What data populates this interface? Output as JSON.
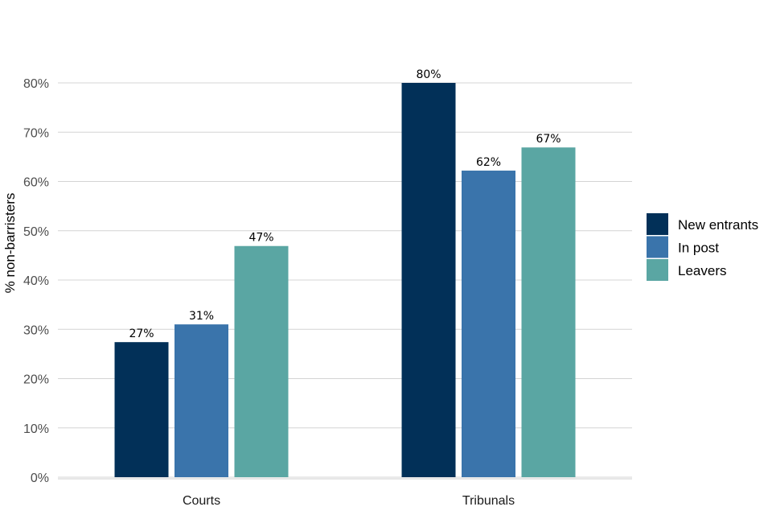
{
  "chart_data": {
    "type": "bar",
    "ylabel": "% non-barristers",
    "xlabel": "",
    "ylim": [
      0,
      80
    ],
    "yticks": [
      "0%",
      "10%",
      "20%",
      "30%",
      "40%",
      "50%",
      "60%",
      "70%",
      "80%"
    ],
    "ytick_values": [
      0,
      10,
      20,
      30,
      40,
      50,
      60,
      70,
      80
    ],
    "categories": [
      "Courts",
      "Tribunals"
    ],
    "grid": true,
    "legend_position": "right",
    "series": [
      {
        "name": "New entrants",
        "color": "#023058",
        "values": [
          27.4,
          80
        ],
        "labels": [
          "27%",
          "80%"
        ]
      },
      {
        "name": "In post",
        "color": "#3a74ab",
        "values": [
          31,
          62.2
        ],
        "labels": [
          "31%",
          "62%"
        ]
      },
      {
        "name": "Leavers",
        "color": "#5aa6a3",
        "values": [
          46.9,
          66.9
        ],
        "labels": [
          "47%",
          "67%"
        ]
      }
    ]
  }
}
